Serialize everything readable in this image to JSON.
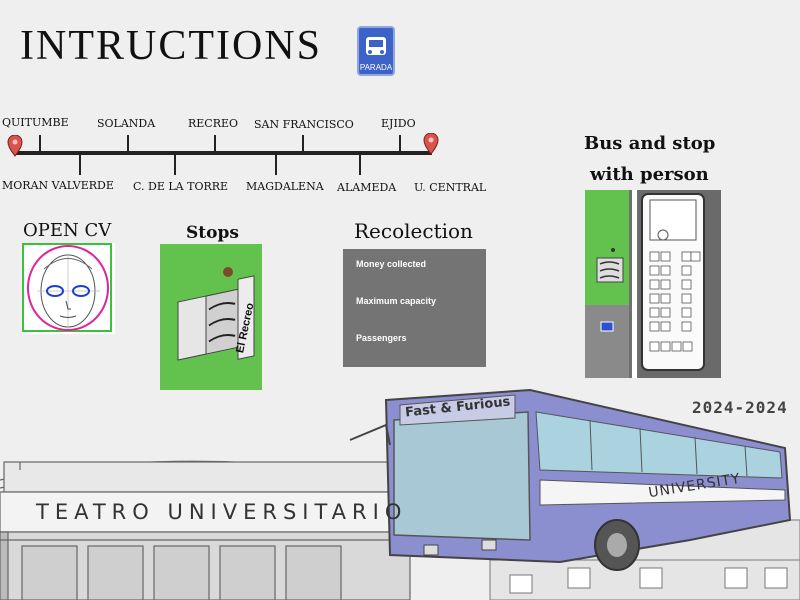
{
  "title": "INTRUCTIONS",
  "parada_sign": {
    "label": "PARADA"
  },
  "route": {
    "top_stops": [
      "QUITUMBE",
      "SOLANDA",
      "RECREO",
      "SAN FRANCISCO",
      "EJIDO"
    ],
    "bottom_stops": [
      "MORAN VALVERDE",
      "C. DE LA TORRE",
      "MAGDALENA",
      "ALAMEDA",
      "U. CENTRAL"
    ]
  },
  "sections": {
    "opencv": "OPEN CV",
    "stops": "Stops",
    "stops_sign": "El Recreo",
    "recolection": "Recolection",
    "bus_stop": [
      "Bus and stop",
      "with person"
    ]
  },
  "recolection_panel": {
    "rows": [
      "Money collected",
      "Maximum capacity",
      "Passengers"
    ]
  },
  "year": "2024-2024",
  "background": {
    "theatre": "TEATRO UNIVERSITARIO",
    "bus_headsign": "Fast & Furious",
    "bus_side": "UNIVERSITY"
  },
  "colors": {
    "grass": "#62c24d",
    "panel_gray": "#747474",
    "bus_purple": "#8b8fcf",
    "sign_blue": "#3d63c8",
    "pin_red": "#d9534f"
  }
}
